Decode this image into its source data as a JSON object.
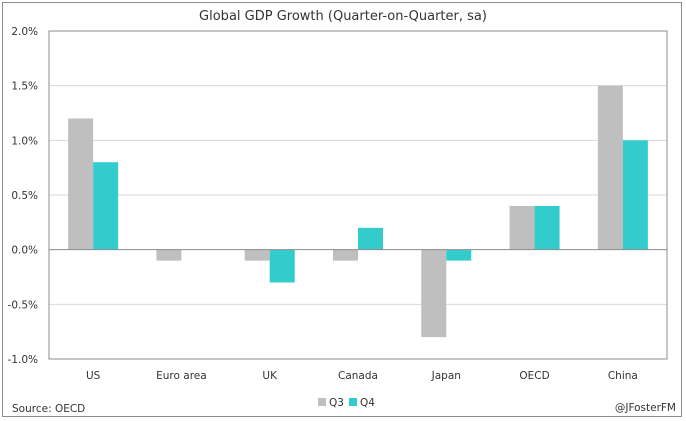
{
  "chart_data": {
    "type": "bar",
    "title": "Global GDP Growth (Quarter-on-Quarter, sa)",
    "xlabel": "",
    "ylabel": "",
    "categories": [
      "US",
      "Euro area",
      "UK",
      "Canada",
      "Japan",
      "OECD",
      "China"
    ],
    "series": [
      {
        "name": "Q3",
        "color": "#BFBFBF",
        "values": [
          1.2,
          -0.1,
          -0.1,
          -0.1,
          -0.8,
          0.4,
          1.5
        ]
      },
      {
        "name": "Q4",
        "color": "#33CCCC",
        "values": [
          0.8,
          0.0,
          -0.3,
          0.2,
          -0.1,
          0.4,
          1.0
        ]
      }
    ],
    "ylim": [
      -1.0,
      2.0
    ],
    "yticks": [
      2.0,
      1.5,
      1.0,
      0.5,
      0.0,
      -0.5,
      -1.0
    ],
    "ytick_labels": [
      "2.0%",
      "1.5%",
      "1.0%",
      "0.5%",
      "0.0%",
      "-0.5%",
      "-1.0%"
    ],
    "grid": true,
    "legend_position": "bottom-center",
    "source": "Source: OECD",
    "credit": "@JFosterFM"
  }
}
